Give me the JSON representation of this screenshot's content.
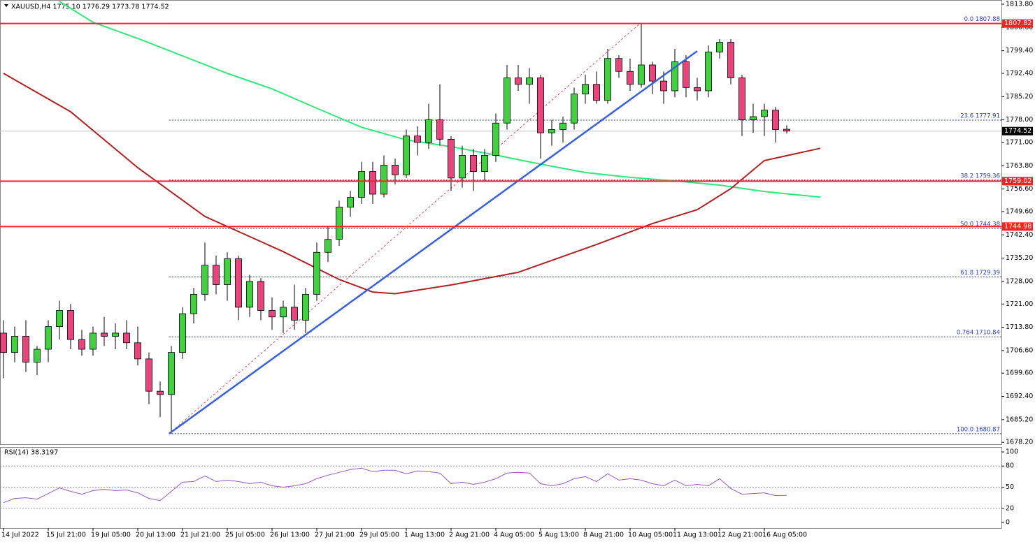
{
  "chart_data": [
    {
      "type": "candlestick",
      "title": "XAUUSD,H4  1775.10 1776.29 1773.78 1774.52",
      "up_color": "#3fd13f",
      "down_color": "#e8457c",
      "open": [
        1712,
        1706,
        1711,
        1703,
        1707,
        1714,
        1719,
        1710,
        1707,
        1712,
        1711,
        1712,
        1709,
        1704,
        1694,
        1693,
        1706,
        1718,
        1724,
        1733,
        1727,
        1735,
        1720,
        1728,
        1719,
        1717,
        1720,
        1716,
        1724,
        1737,
        1741,
        1751,
        1754,
        1762,
        1755,
        1764,
        1761,
        1773,
        1771,
        1778,
        1772,
        1760,
        1767,
        1762,
        1767,
        1777,
        1791,
        1789,
        1791,
        1774,
        1775,
        1777,
        1786,
        1789,
        1784,
        1797,
        1793,
        1789,
        1795,
        1790,
        1787,
        1796,
        1788,
        1787,
        1799,
        1802,
        1791,
        1778,
        1779,
        1781,
        1775.1
      ],
      "high": [
        1716,
        1714,
        1716,
        1708,
        1716,
        1722,
        1721,
        1713,
        1714,
        1717,
        1715,
        1716,
        1714,
        1706,
        1697,
        1708,
        1720,
        1726,
        1740,
        1736,
        1737,
        1736,
        1730,
        1729,
        1723,
        1722,
        1727,
        1726,
        1740,
        1745,
        1753,
        1756,
        1765,
        1765,
        1767,
        1766,
        1775,
        1776,
        1783,
        1789,
        1773,
        1770,
        1769,
        1769,
        1780,
        1795,
        1795,
        1794,
        1792,
        1778,
        1779,
        1788,
        1792,
        1793,
        1800,
        1798,
        1797,
        1808,
        1796,
        1793,
        1800,
        1798,
        1791,
        1801,
        1803,
        1803,
        1792,
        1783,
        1783,
        1782,
        1776.29
      ],
      "low": [
        1698,
        1703,
        1700,
        1699,
        1703,
        1710,
        1707,
        1705,
        1705,
        1708,
        1707,
        1707,
        1702,
        1690,
        1686,
        1680.87,
        1704,
        1715,
        1722,
        1724,
        1722,
        1716,
        1717,
        1716,
        1713,
        1712,
        1713,
        1712,
        1722,
        1734,
        1739,
        1748,
        1752,
        1752,
        1754,
        1758,
        1760,
        1767,
        1769,
        1770,
        1756,
        1757,
        1756,
        1759,
        1765,
        1775,
        1787,
        1783,
        1766,
        1770,
        1771,
        1775,
        1783,
        1783,
        1783,
        1791,
        1787,
        1788,
        1786,
        1783,
        1785,
        1785,
        1784,
        1785,
        1797,
        1789,
        1773,
        1774,
        1773,
        1771,
        1773.78
      ],
      "close": [
        1706,
        1711,
        1703,
        1707,
        1714,
        1719,
        1710,
        1707,
        1712,
        1711,
        1712,
        1709,
        1704,
        1694,
        1693,
        1706,
        1718,
        1724,
        1733,
        1727,
        1735,
        1720,
        1728,
        1719,
        1717,
        1720,
        1716,
        1724,
        1737,
        1741,
        1751,
        1754,
        1762,
        1755,
        1764,
        1761,
        1773,
        1771,
        1778,
        1772,
        1760,
        1767,
        1762,
        1767,
        1777,
        1791,
        1789,
        1791,
        1774,
        1775,
        1777,
        1786,
        1789,
        1784,
        1797,
        1793,
        1789,
        1795,
        1790,
        1787,
        1796,
        1788,
        1787,
        1799,
        1802,
        1791,
        1778,
        1779,
        1781,
        1775,
        1774.52
      ],
      "series": [
        {
          "color": "#2ee87a",
          "x": [
            5,
            8,
            12,
            16,
            20,
            24,
            28,
            32,
            36,
            40,
            44,
            48,
            52,
            56,
            60,
            64,
            68,
            73
          ],
          "values": [
            1814.7,
            1808.2,
            1803.2,
            1797.8,
            1792.4,
            1787.6,
            1781.6,
            1775.7,
            1771.8,
            1769.7,
            1767.1,
            1764.3,
            1761.7,
            1760.2,
            1759.1,
            1757.8,
            1755.8,
            1754.1
          ]
        },
        {
          "color": "#b02222",
          "x": [
            0,
            6,
            12,
            18,
            25,
            30,
            33,
            35,
            40,
            46,
            53,
            58,
            62,
            65,
            68,
            73
          ],
          "values": [
            1792.4,
            1780.5,
            1763.2,
            1748.1,
            1737.2,
            1728.6,
            1724.7,
            1724.2,
            1726.9,
            1730.8,
            1739.4,
            1745.9,
            1750.2,
            1756.7,
            1765.4,
            1769.2
          ]
        }
      ],
      "trendline": {
        "color": "#3a62d8",
        "x": [
          14.8,
          62
        ],
        "values": [
          1680.87,
          1799.3
        ]
      },
      "fib_anchor": {
        "color": "#e05050",
        "x": [
          14.8,
          56.9
        ],
        "values": [
          1680.87,
          1807.88
        ]
      },
      "fib_levels": [
        {
          "value": 1807.88,
          "label": "0.0 1807.88"
        },
        {
          "value": 1777.91,
          "label": "23.6 1777.91"
        },
        {
          "value": 1759.36,
          "label": "38.2 1759.36"
        },
        {
          "value": 1744.38,
          "label": "50.0 1744.38"
        },
        {
          "value": 1729.39,
          "label": "61.8 1729.39"
        },
        {
          "value": 1710.84,
          "label": "0.764 1710.84"
        },
        {
          "value": 1680.87,
          "label": "100.0 1680.87"
        }
      ],
      "hlines": [
        {
          "value": 1807.82,
          "label": "1807.82"
        },
        {
          "value": 1759.02,
          "label": "1759.02"
        },
        {
          "value": 1744.98,
          "label": "1744.98"
        }
      ],
      "hline_color": "#ff2020",
      "last_price": {
        "value": 1774.52,
        "label": "1774.52"
      },
      "xlim": [
        -0.3125,
        89.1875
      ],
      "xticks": [
        {
          "value": 0,
          "label": "14 Jul 2022"
        },
        {
          "value": 4,
          "label": "15 Jul 21:00"
        },
        {
          "value": 8,
          "label": "19 Jul 05:00"
        },
        {
          "value": 12,
          "label": "20 Jul 13:00"
        },
        {
          "value": 16,
          "label": "21 Jul 21:00"
        },
        {
          "value": 20,
          "label": "25 Jul 05:00"
        },
        {
          "value": 24,
          "label": "26 Jul 13:00"
        },
        {
          "value": 28,
          "label": "27 Jul 21:00"
        },
        {
          "value": 32,
          "label": "29 Jul 05:00"
        },
        {
          "value": 36,
          "label": "1 Aug 13:00"
        },
        {
          "value": 40,
          "label": "2 Aug 21:00"
        },
        {
          "value": 44,
          "label": "4 Aug 05:00"
        },
        {
          "value": 48,
          "label": "5 Aug 13:00"
        },
        {
          "value": 52,
          "label": "8 Aug 21:00"
        },
        {
          "value": 56,
          "label": "10 Aug 05:00"
        },
        {
          "value": 60,
          "label": "11 Aug 13:00"
        },
        {
          "value": 64,
          "label": "12 Aug 21:00"
        },
        {
          "value": 68,
          "label": "16 Aug 05:00"
        }
      ],
      "ylim": [
        1677.6,
        1815.1
      ],
      "yticks": [
        {
          "value": 1813.8,
          "label": "1813.80"
        },
        {
          "value": 1806.6,
          "label": "1806.60"
        },
        {
          "value": 1799.4,
          "label": "1799.40"
        },
        {
          "value": 1792.4,
          "label": "1792.40"
        },
        {
          "value": 1785.2,
          "label": "1785.20"
        },
        {
          "value": 1778,
          "label": "1778.00"
        },
        {
          "value": 1771,
          "label": "1771.00"
        },
        {
          "value": 1763.8,
          "label": "1763.80"
        },
        {
          "value": 1756.6,
          "label": "1756.60"
        },
        {
          "value": 1749.6,
          "label": "1749.60"
        },
        {
          "value": 1742.4,
          "label": "1742.40"
        },
        {
          "value": 1735.2,
          "label": "1735.20"
        },
        {
          "value": 1728,
          "label": "1728.00"
        },
        {
          "value": 1721,
          "label": "1721.00"
        },
        {
          "value": 1713.8,
          "label": "1713.80"
        },
        {
          "value": 1706.6,
          "label": "1706.60"
        },
        {
          "value": 1699.6,
          "label": "1699.60"
        },
        {
          "value": 1692.4,
          "label": "1692.40"
        },
        {
          "value": 1685.2,
          "label": "1685.20"
        },
        {
          "value": 1678.2,
          "label": "1678.20"
        }
      ]
    },
    {
      "type": "line",
      "title": "RSI(14) 38.3197",
      "series": [
        {
          "color": "#9a55c8",
          "values": [
            28,
            34,
            35,
            33,
            41,
            49,
            44,
            40,
            45,
            47,
            45,
            46,
            42,
            34,
            31,
            44,
            57,
            58,
            66,
            58,
            60,
            58,
            55,
            57,
            52,
            50,
            52,
            55,
            62,
            67,
            71,
            75,
            77,
            72,
            74,
            74,
            69,
            73,
            72,
            70,
            55,
            57,
            54,
            57,
            62,
            70,
            71,
            70,
            55,
            52,
            55,
            62,
            65,
            58,
            69,
            60,
            62,
            60,
            55,
            52,
            60,
            52,
            54,
            52,
            62,
            48,
            40,
            41,
            42,
            38,
            38.3197
          ]
        }
      ],
      "levels": [
        80,
        50,
        20
      ],
      "ylim": [
        -8,
        107
      ],
      "yticks": [
        100,
        80,
        50,
        20,
        0
      ]
    }
  ]
}
